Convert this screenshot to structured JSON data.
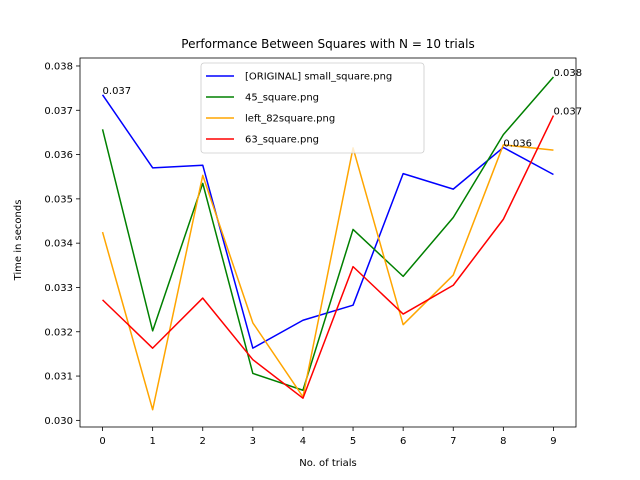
{
  "chart_data": {
    "type": "line",
    "title": "Performance Between Squares with N = 10 trials",
    "xlabel": "No. of trials",
    "ylabel": "Time in seconds",
    "x": [
      0,
      1,
      2,
      3,
      4,
      5,
      6,
      7,
      8,
      9
    ],
    "xlim": [
      -0.45,
      9.45
    ],
    "ylim": [
      0.02985,
      0.03818
    ],
    "xticks": [
      "0",
      "1",
      "2",
      "3",
      "4",
      "5",
      "6",
      "7",
      "8",
      "9"
    ],
    "yticks": [
      0.03,
      0.031,
      0.032,
      0.033,
      0.034,
      0.035,
      0.036,
      0.037,
      0.038
    ],
    "ytick_labels": [
      "0.030",
      "0.031",
      "0.032",
      "0.033",
      "0.034",
      "0.035",
      "0.036",
      "0.037",
      "0.038"
    ],
    "grid": false,
    "legend_position": "top-center",
    "series": [
      {
        "name": "[ORIGINAL] small_square.png",
        "color": "#0000ff",
        "values": [
          0.03735,
          0.0357,
          0.03576,
          0.03163,
          0.03226,
          0.0326,
          0.03557,
          0.03522,
          0.03616,
          0.03555
        ]
      },
      {
        "name": "45_square.png",
        "color": "#008000",
        "values": [
          0.03657,
          0.03202,
          0.03535,
          0.03106,
          0.03068,
          0.03431,
          0.03325,
          0.03458,
          0.03645,
          0.03775
        ]
      },
      {
        "name": "left_82square.png",
        "color": "#ffa500",
        "values": [
          0.03425,
          0.03024,
          0.03553,
          0.0322,
          0.03053,
          0.03615,
          0.03216,
          0.03328,
          0.03622,
          0.0361
        ]
      },
      {
        "name": "63_square.png",
        "color": "#ff0000",
        "values": [
          0.03272,
          0.03163,
          0.03276,
          0.03137,
          0.0305,
          0.03347,
          0.0324,
          0.03305,
          0.03454,
          0.03688
        ]
      }
    ],
    "annotations": [
      {
        "text": "0.037",
        "x": 0,
        "y": 0.03735
      },
      {
        "text": "0.036",
        "x": 8,
        "y": 0.03616
      },
      {
        "text": "0.038",
        "x": 9,
        "y": 0.03775
      },
      {
        "text": "0.037",
        "x": 9,
        "y": 0.03688
      }
    ]
  }
}
